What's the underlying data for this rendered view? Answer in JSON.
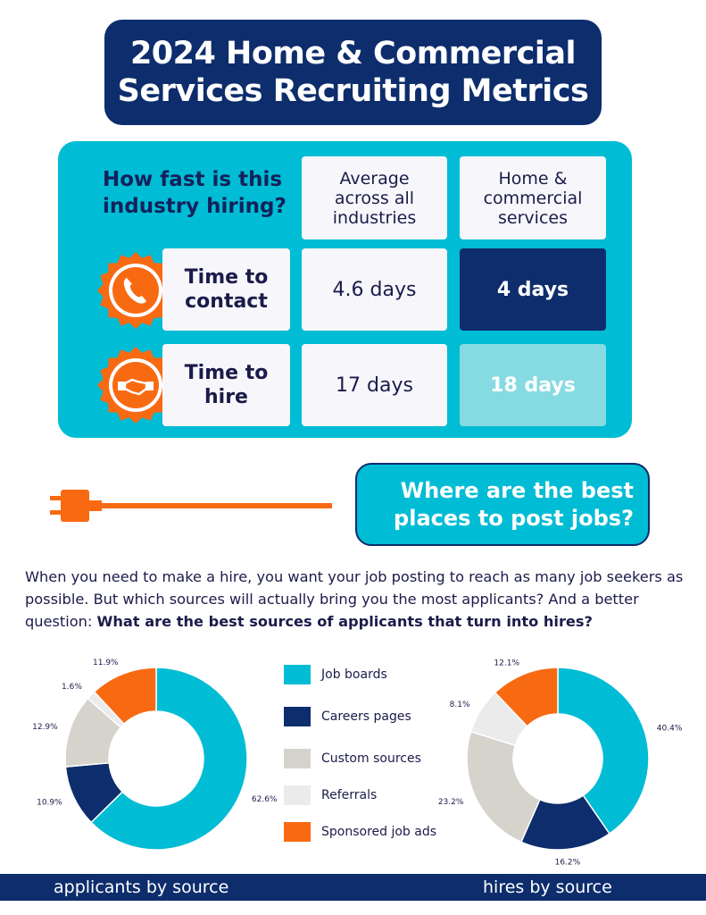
{
  "title": "2024 Home & Commercial Services Recruiting Metrics",
  "speed_table": {
    "question": "How fast is this industry hiring?",
    "col_avg": "Average across all industries",
    "col_industry": "Home & commercial services",
    "rows": [
      {
        "label": "Time to contact",
        "avg": "4.6 days",
        "industry": "4 days",
        "icon": "phone-icon"
      },
      {
        "label": "Time to hire",
        "avg": "17 days",
        "industry": "18 days",
        "icon": "handshake-icon"
      }
    ]
  },
  "section_title": "Where are the best places to post jobs?",
  "intro_text": "When you need to make a hire, you want your job posting to reach as many job seekers as possible. But which sources will actually bring you the most applicants? And a better question: ",
  "intro_bold": "What are the best sources of applicants that turn into hires?",
  "colors": {
    "job_boards": "#00bcd4",
    "careers_pages": "#0d2d6c",
    "custom_sources": "#d6d3cc",
    "referrals": "#ebebeb",
    "sponsored": "#f86a12"
  },
  "legend": [
    "Job boards",
    "Careers pages",
    "Custom sources",
    "Referrals",
    "Sponsored job ads"
  ],
  "footer": {
    "left": "applicants by source",
    "right": "hires by source"
  },
  "chart_data": [
    {
      "type": "pie",
      "title": "applicants by source",
      "categories": [
        "Job boards",
        "Careers pages",
        "Custom sources",
        "Referrals",
        "Sponsored job ads"
      ],
      "values": [
        62.6,
        10.9,
        12.9,
        1.6,
        11.9
      ],
      "labels": [
        "62.6%",
        "10.9%",
        "12.9%",
        "1.6%",
        "11.9%"
      ]
    },
    {
      "type": "pie",
      "title": "hires by source",
      "categories": [
        "Job boards",
        "Careers pages",
        "Custom sources",
        "Referrals",
        "Sponsored job ads"
      ],
      "values": [
        40.4,
        16.2,
        23.2,
        8.1,
        12.1
      ],
      "labels": [
        "40.4%",
        "16.2%",
        "23.2%",
        "8.1%",
        "12.1%"
      ]
    }
  ]
}
